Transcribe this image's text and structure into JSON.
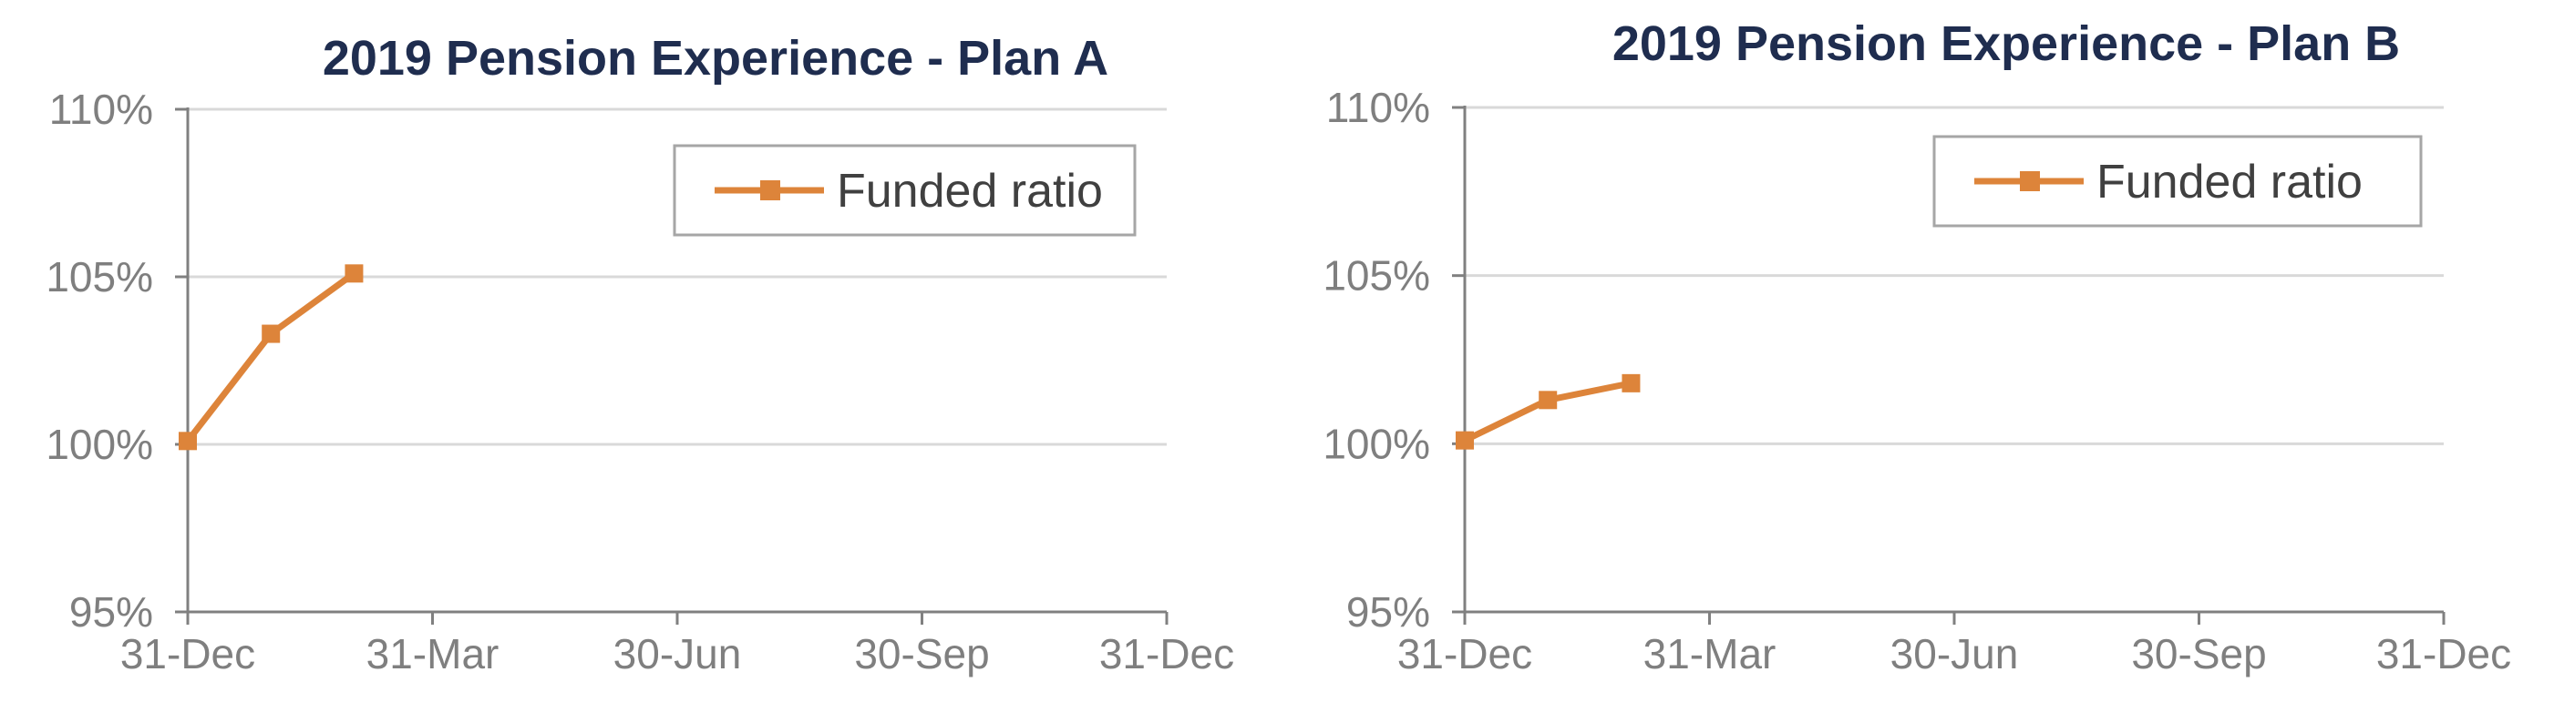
{
  "chart_data": [
    {
      "type": "line",
      "title": "2019 Pension Experience - Plan A",
      "x_categories": [
        "31-Dec",
        "31-Mar",
        "30-Jun",
        "30-Sep",
        "31-Dec"
      ],
      "y_ticks": [
        "95%",
        "100%",
        "105%",
        "110%"
      ],
      "ylim": [
        95,
        110
      ],
      "grid": true,
      "legend_position": "top-right",
      "series": [
        {
          "name": "Funded ratio",
          "color": "#dd843a",
          "marker": "square",
          "x_days_from_start": [
            0,
            31,
            62
          ],
          "x": [
            "2018-12-31",
            "2019-01-31",
            "2019-03-01"
          ],
          "values": [
            100.1,
            103.3,
            105.1
          ]
        }
      ]
    },
    {
      "type": "line",
      "title": "2019 Pension Experience - Plan B",
      "x_categories": [
        "31-Dec",
        "31-Mar",
        "30-Jun",
        "30-Sep",
        "31-Dec"
      ],
      "y_ticks": [
        "95%",
        "100%",
        "105%",
        "110%"
      ],
      "ylim": [
        95,
        110
      ],
      "grid": true,
      "legend_position": "top-right",
      "series": [
        {
          "name": "Funded ratio",
          "color": "#dd843a",
          "marker": "square",
          "x_days_from_start": [
            0,
            31,
            62
          ],
          "x": [
            "2018-12-31",
            "2019-01-31",
            "2019-03-01"
          ],
          "values": [
            100.1,
            101.3,
            101.8
          ]
        }
      ]
    }
  ]
}
